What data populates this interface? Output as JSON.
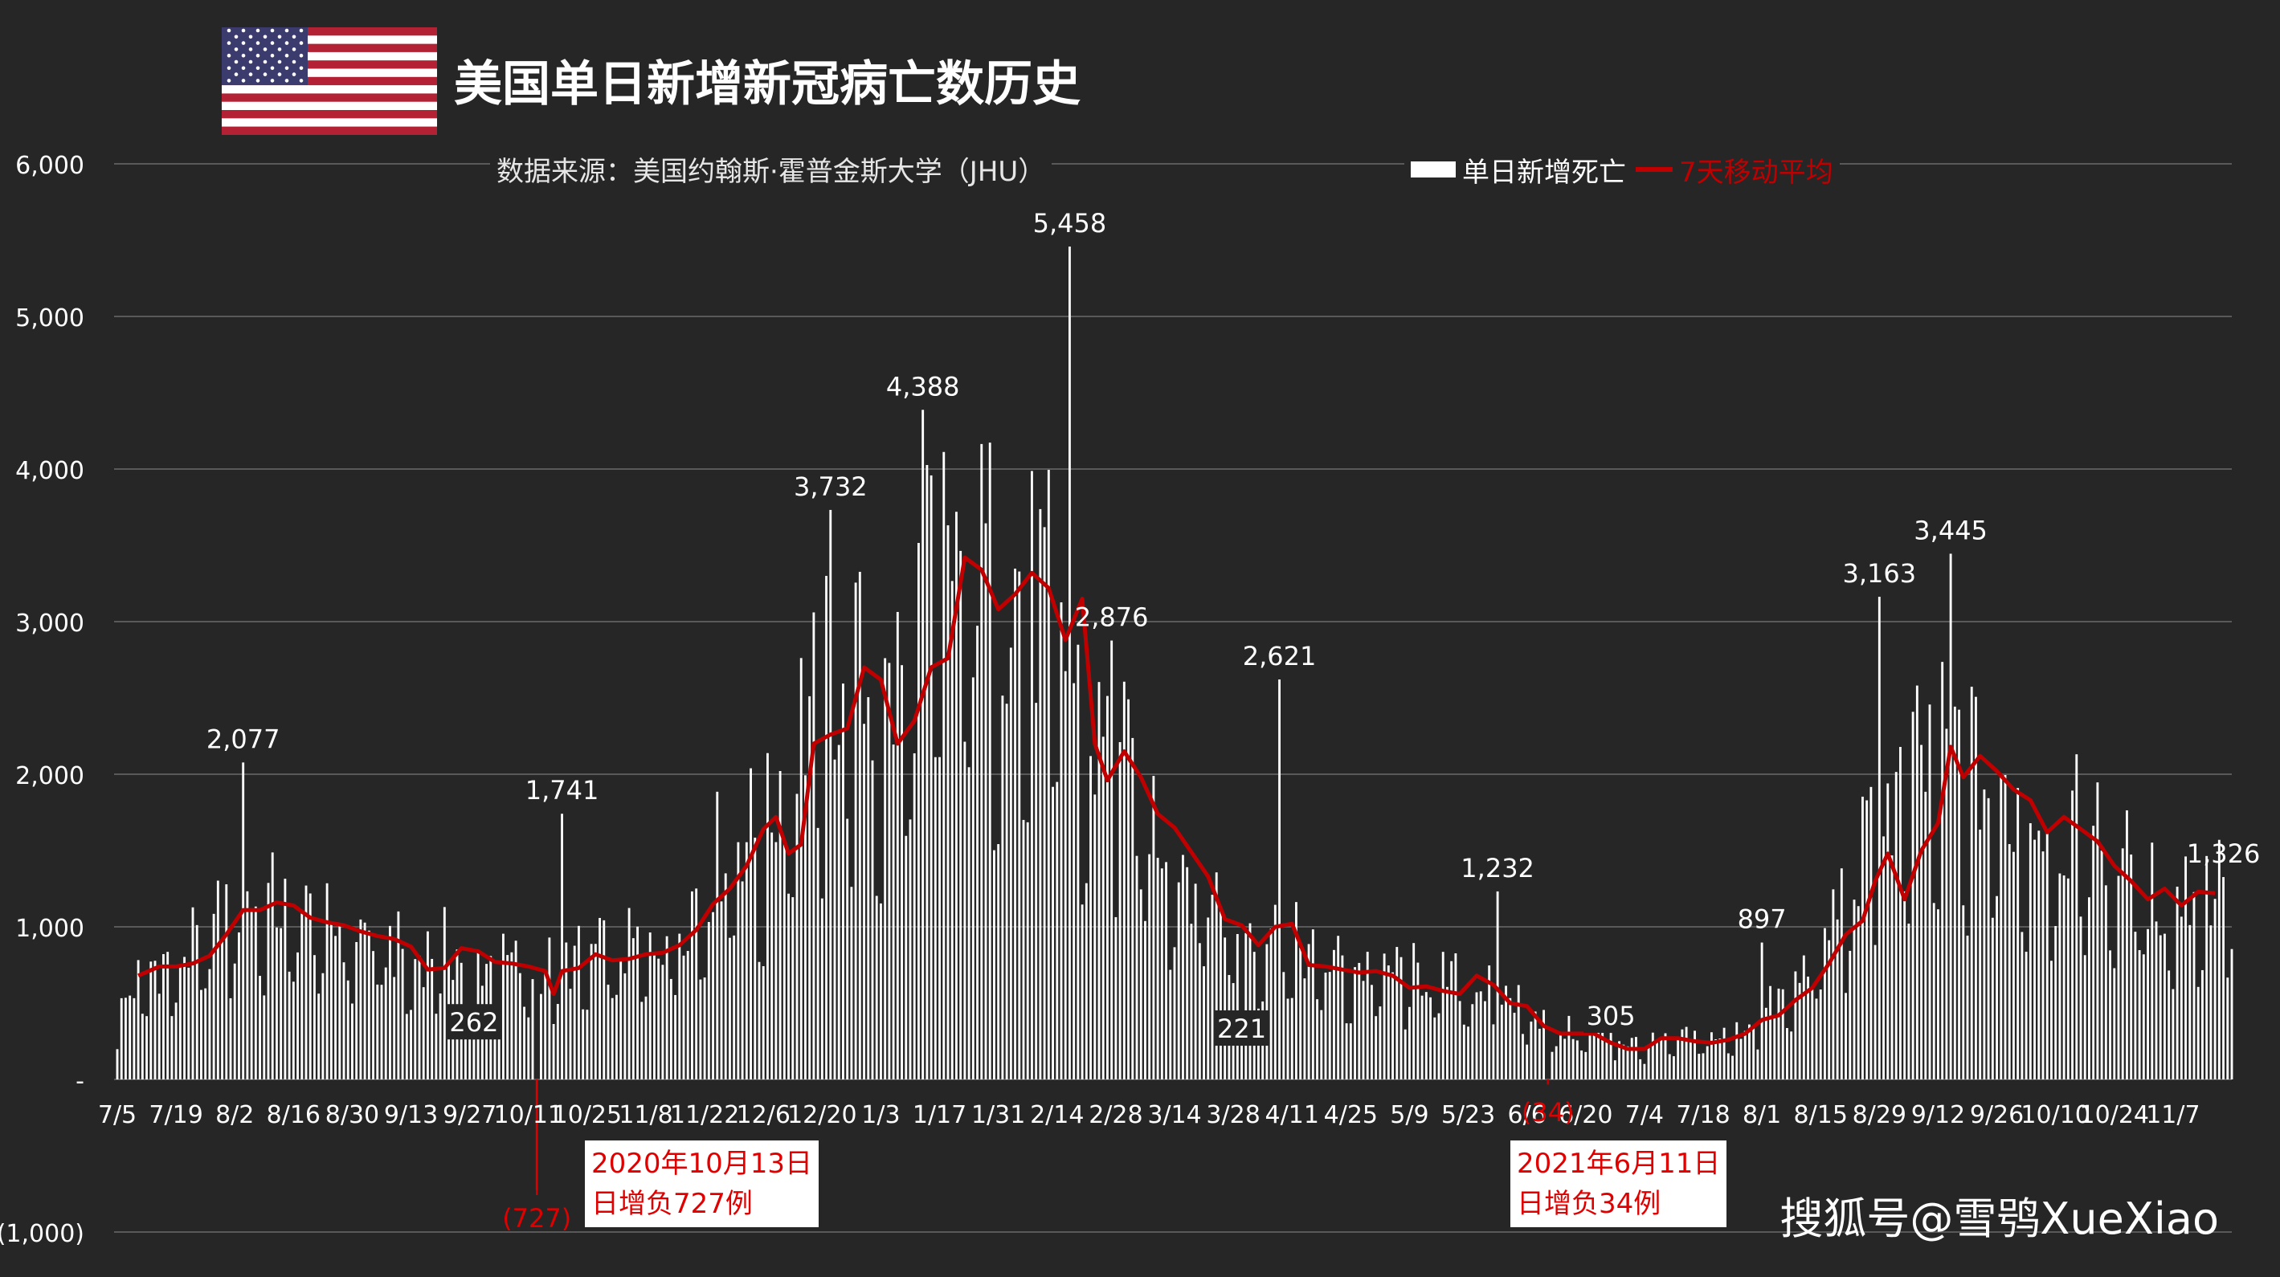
{
  "title": "美国单日新增新冠病亡数历史",
  "source": "数据来源：美国约翰斯·霍普金斯大学（JHU）",
  "watermark": "搜狐号@雪鸮XueXiao",
  "flag": {
    "icon": "us-flag-icon",
    "colors": [
      "#b22234",
      "#ffffff",
      "#3c3b6e"
    ]
  },
  "colors": {
    "background": "#262626",
    "bars": "#ffffff",
    "average": "#c00000",
    "grid": "#595959",
    "callout_text": "#e00000"
  },
  "callouts": [
    {
      "id": "callout-2020",
      "line1": "2020年10月13日",
      "line2": "日增负727例"
    },
    {
      "id": "callout-2021",
      "line1": "2021年6月11日",
      "line2": "日增负34例"
    }
  ],
  "chart_data": {
    "type": "bar",
    "legend": {
      "placement": "top-right",
      "entries": [
        "单日新增死亡",
        "7天移动平均"
      ]
    },
    "y_ticks": [
      {
        "v": 6000,
        "t": "6,000"
      },
      {
        "v": 5000,
        "t": "5,000"
      },
      {
        "v": 4000,
        "t": "4,000"
      },
      {
        "v": 3000,
        "t": "3,000"
      },
      {
        "v": 2000,
        "t": "2,000"
      },
      {
        "v": 1000,
        "t": "1,000"
      },
      {
        "v": 0,
        "t": "-"
      },
      {
        "v": -1000,
        "t": "(1,000)"
      }
    ],
    "ylim": [
      -1000,
      6000
    ],
    "grid": true,
    "days": 505,
    "x_ticks": [
      "7/5",
      "7/19",
      "8/2",
      "8/16",
      "8/30",
      "9/13",
      "9/27",
      "10/11",
      "10/25",
      "11/8",
      "11/22",
      "12/6",
      "12/20",
      "1/3",
      "1/17",
      "1/31",
      "2/14",
      "2/28",
      "3/14",
      "3/28",
      "4/11",
      "4/25",
      "5/9",
      "5/23",
      "6/6",
      "6/20",
      "7/4",
      "7/18",
      "8/1",
      "8/15",
      "8/29",
      "9/12",
      "9/26",
      "10/10",
      "10/24",
      "11/7"
    ],
    "series_daily": {
      "name": "单日新增死亡",
      "anchors": [
        [
          0,
          400
        ],
        [
          7,
          720
        ],
        [
          14,
          760
        ],
        [
          21,
          900
        ],
        [
          28,
          1120
        ],
        [
          35,
          1150
        ],
        [
          42,
          1050
        ],
        [
          49,
          1000
        ],
        [
          56,
          950
        ],
        [
          63,
          900
        ],
        [
          70,
          760
        ],
        [
          77,
          860
        ],
        [
          84,
          750
        ],
        [
          91,
          730
        ],
        [
          98,
          720
        ],
        [
          105,
          730
        ],
        [
          112,
          780
        ],
        [
          119,
          820
        ],
        [
          126,
          850
        ],
        [
          133,
          1000
        ],
        [
          140,
          1250
        ],
        [
          147,
          1650
        ],
        [
          154,
          1500
        ],
        [
          161,
          2200
        ],
        [
          168,
          2450
        ],
        [
          175,
          2650
        ],
        [
          182,
          2250
        ],
        [
          189,
          2700
        ],
        [
          196,
          3350
        ],
        [
          203,
          3250
        ],
        [
          210,
          3200
        ],
        [
          217,
          3050
        ],
        [
          224,
          2950
        ],
        [
          231,
          2150
        ],
        [
          238,
          2050
        ],
        [
          245,
          1750
        ],
        [
          252,
          1500
        ],
        [
          259,
          1250
        ],
        [
          266,
          1050
        ],
        [
          273,
          980
        ],
        [
          280,
          880
        ],
        [
          287,
          760
        ],
        [
          294,
          720
        ],
        [
          301,
          700
        ],
        [
          308,
          690
        ],
        [
          315,
          640
        ],
        [
          322,
          620
        ],
        [
          329,
          550
        ],
        [
          336,
          480
        ],
        [
          343,
          320
        ],
        [
          350,
          300
        ],
        [
          357,
          250
        ],
        [
          364,
          220
        ],
        [
          371,
          250
        ],
        [
          378,
          270
        ],
        [
          385,
          280
        ],
        [
          392,
          420
        ],
        [
          399,
          560
        ],
        [
          406,
          850
        ],
        [
          413,
          1250
        ],
        [
          420,
          1600
        ],
        [
          427,
          1900
        ],
        [
          434,
          2050
        ],
        [
          441,
          2000
        ],
        [
          448,
          1800
        ],
        [
          455,
          1700
        ],
        [
          462,
          1650
        ],
        [
          469,
          1550
        ],
        [
          476,
          1450
        ],
        [
          483,
          1200
        ],
        [
          490,
          1150
        ],
        [
          497,
          1250
        ],
        [
          504,
          1250
        ]
      ],
      "labeled": [
        {
          "day": 30,
          "value": 2077,
          "label": "2,077"
        },
        {
          "day": 85,
          "value": 262,
          "label": "262"
        },
        {
          "day": 106,
          "value": 1741,
          "label": "1,741"
        },
        {
          "day": 100,
          "value": -727,
          "label": "(727)"
        },
        {
          "day": 170,
          "value": 3732,
          "label": "3,732"
        },
        {
          "day": 192,
          "value": 4388,
          "label": "4,388"
        },
        {
          "day": 227,
          "value": 5458,
          "label": "5,458"
        },
        {
          "day": 237,
          "value": 2876,
          "label": "2,876"
        },
        {
          "day": 268,
          "value": 221,
          "label": "221"
        },
        {
          "day": 277,
          "value": 2621,
          "label": "2,621"
        },
        {
          "day": 329,
          "value": 1232,
          "label": "1,232"
        },
        {
          "day": 341,
          "value": -34,
          "label": "(34)"
        },
        {
          "day": 356,
          "value": 305,
          "label": "305"
        },
        {
          "day": 392,
          "value": 897,
          "label": "897"
        },
        {
          "day": 420,
          "value": 3163,
          "label": "3,163"
        },
        {
          "day": 437,
          "value": 3445,
          "label": "3,445"
        },
        {
          "day": 502,
          "value": 1326,
          "label": "1,326"
        }
      ]
    },
    "series_average": {
      "name": "7天移动平均",
      "points": [
        [
          5,
          680
        ],
        [
          10,
          740
        ],
        [
          14,
          740
        ],
        [
          18,
          760
        ],
        [
          22,
          810
        ],
        [
          26,
          950
        ],
        [
          30,
          1110
        ],
        [
          34,
          1110
        ],
        [
          38,
          1160
        ],
        [
          42,
          1140
        ],
        [
          46,
          1060
        ],
        [
          50,
          1030
        ],
        [
          54,
          1010
        ],
        [
          58,
          970
        ],
        [
          62,
          940
        ],
        [
          66,
          920
        ],
        [
          70,
          870
        ],
        [
          74,
          720
        ],
        [
          78,
          730
        ],
        [
          82,
          860
        ],
        [
          86,
          840
        ],
        [
          90,
          770
        ],
        [
          94,
          760
        ],
        [
          98,
          740
        ],
        [
          102,
          710
        ],
        [
          104,
          560
        ],
        [
          106,
          710
        ],
        [
          110,
          730
        ],
        [
          114,
          820
        ],
        [
          118,
          780
        ],
        [
          122,
          790
        ],
        [
          126,
          820
        ],
        [
          130,
          830
        ],
        [
          134,
          880
        ],
        [
          138,
          980
        ],
        [
          142,
          1150
        ],
        [
          146,
          1250
        ],
        [
          150,
          1400
        ],
        [
          154,
          1640
        ],
        [
          157,
          1720
        ],
        [
          160,
          1480
        ],
        [
          163,
          1540
        ],
        [
          166,
          2200
        ],
        [
          170,
          2260
        ],
        [
          174,
          2300
        ],
        [
          178,
          2700
        ],
        [
          182,
          2620
        ],
        [
          186,
          2200
        ],
        [
          190,
          2350
        ],
        [
          194,
          2700
        ],
        [
          198,
          2760
        ],
        [
          202,
          3420
        ],
        [
          206,
          3340
        ],
        [
          210,
          3080
        ],
        [
          214,
          3180
        ],
        [
          218,
          3320
        ],
        [
          222,
          3220
        ],
        [
          226,
          2880
        ],
        [
          230,
          3150
        ],
        [
          233,
          2200
        ],
        [
          236,
          1960
        ],
        [
          240,
          2150
        ],
        [
          244,
          1980
        ],
        [
          248,
          1740
        ],
        [
          252,
          1650
        ],
        [
          256,
          1490
        ],
        [
          260,
          1330
        ],
        [
          264,
          1050
        ],
        [
          268,
          1010
        ],
        [
          272,
          880
        ],
        [
          276,
          1000
        ],
        [
          280,
          1020
        ],
        [
          284,
          750
        ],
        [
          288,
          740
        ],
        [
          292,
          720
        ],
        [
          296,
          700
        ],
        [
          300,
          710
        ],
        [
          304,
          680
        ],
        [
          308,
          600
        ],
        [
          312,
          610
        ],
        [
          316,
          580
        ],
        [
          320,
          560
        ],
        [
          324,
          680
        ],
        [
          328,
          620
        ],
        [
          332,
          500
        ],
        [
          336,
          480
        ],
        [
          340,
          350
        ],
        [
          344,
          300
        ],
        [
          348,
          300
        ],
        [
          352,
          300
        ],
        [
          356,
          240
        ],
        [
          360,
          200
        ],
        [
          364,
          200
        ],
        [
          368,
          270
        ],
        [
          372,
          270
        ],
        [
          376,
          250
        ],
        [
          380,
          240
        ],
        [
          384,
          260
        ],
        [
          388,
          300
        ],
        [
          392,
          390
        ],
        [
          396,
          420
        ],
        [
          400,
          520
        ],
        [
          404,
          600
        ],
        [
          408,
          760
        ],
        [
          412,
          950
        ],
        [
          416,
          1040
        ],
        [
          419,
          1300
        ],
        [
          422,
          1480
        ],
        [
          426,
          1180
        ],
        [
          430,
          1500
        ],
        [
          434,
          1680
        ],
        [
          437,
          2180
        ],
        [
          440,
          1980
        ],
        [
          444,
          2120
        ],
        [
          448,
          2020
        ],
        [
          452,
          1900
        ],
        [
          456,
          1830
        ],
        [
          460,
          1620
        ],
        [
          464,
          1720
        ],
        [
          468,
          1640
        ],
        [
          472,
          1560
        ],
        [
          476,
          1400
        ],
        [
          480,
          1300
        ],
        [
          484,
          1180
        ],
        [
          488,
          1250
        ],
        [
          492,
          1140
        ],
        [
          496,
          1230
        ],
        [
          500,
          1220
        ]
      ]
    }
  }
}
